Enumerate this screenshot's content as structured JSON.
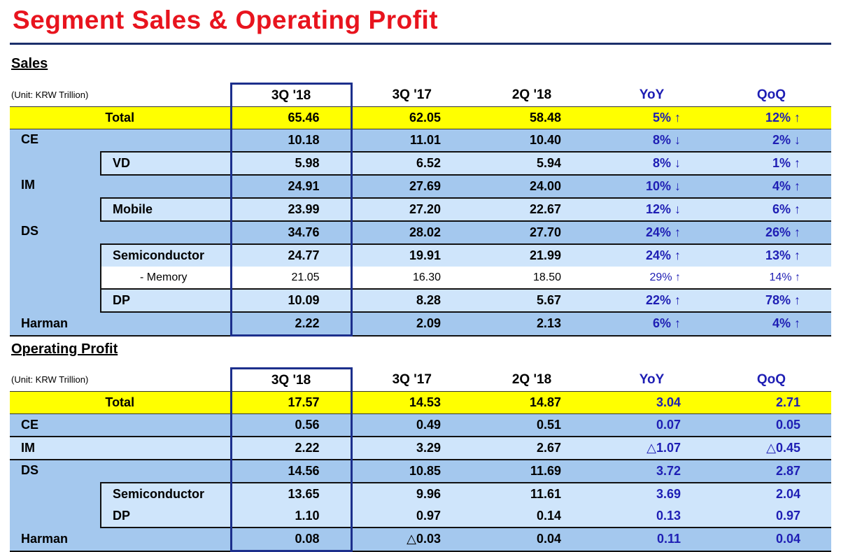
{
  "title": "Segment Sales & Operating Profit",
  "sales": {
    "heading": "Sales",
    "unit": "(Unit: KRW Trillion)",
    "columns": [
      "3Q '18",
      "3Q '17",
      "2Q '18",
      "YoY",
      "QoQ"
    ],
    "rows": {
      "total": {
        "label": "Total",
        "v": [
          "65.46",
          "62.05",
          "58.48",
          "5% ↑",
          "12% ↑"
        ]
      },
      "ce": {
        "label": "CE",
        "v": [
          "10.18",
          "11.01",
          "10.40",
          "8% ↓",
          "2% ↓"
        ]
      },
      "vd": {
        "label": "VD",
        "v": [
          "5.98",
          "6.52",
          "5.94",
          "8% ↓",
          "1% ↑"
        ]
      },
      "im": {
        "label": "IM",
        "v": [
          "24.91",
          "27.69",
          "24.00",
          "10% ↓",
          "4% ↑"
        ]
      },
      "mobile": {
        "label": "Mobile",
        "v": [
          "23.99",
          "27.20",
          "22.67",
          "12% ↓",
          "6% ↑"
        ]
      },
      "ds": {
        "label": "DS",
        "v": [
          "34.76",
          "28.02",
          "27.70",
          "24% ↑",
          "26% ↑"
        ]
      },
      "semi": {
        "label": "Semiconductor",
        "v": [
          "24.77",
          "19.91",
          "21.99",
          "24% ↑",
          "13% ↑"
        ]
      },
      "memory": {
        "label": "- Memory",
        "v": [
          "21.05",
          "16.30",
          "18.50",
          "29% ↑",
          "14% ↑"
        ]
      },
      "dp": {
        "label": "DP",
        "v": [
          "10.09",
          "8.28",
          "5.67",
          "22% ↑",
          "78% ↑"
        ]
      },
      "harman": {
        "label": "Harman",
        "v": [
          "2.22",
          "2.09",
          "2.13",
          "6% ↑",
          "4% ↑"
        ]
      }
    }
  },
  "op": {
    "heading": "Operating Profit",
    "unit": "(Unit: KRW Trillion)",
    "columns": [
      "3Q '18",
      "3Q '17",
      "2Q '18",
      "YoY",
      "QoQ"
    ],
    "rows": {
      "total": {
        "label": "Total",
        "v": [
          "17.57",
          "14.53",
          "14.87",
          "3.04",
          "2.71"
        ]
      },
      "ce": {
        "label": "CE",
        "v": [
          "0.56",
          "0.49",
          "0.51",
          "0.07",
          "0.05"
        ]
      },
      "im": {
        "label": "IM",
        "v": [
          "2.22",
          "3.29",
          "2.67",
          "△1.07",
          "△0.45"
        ]
      },
      "ds": {
        "label": "DS",
        "v": [
          "14.56",
          "10.85",
          "11.69",
          "3.72",
          "2.87"
        ]
      },
      "semi": {
        "label": "Semiconductor",
        "v": [
          "13.65",
          "9.96",
          "11.61",
          "3.69",
          "2.04"
        ]
      },
      "dp": {
        "label": "DP",
        "v": [
          "1.10",
          "0.97",
          "0.14",
          "0.13",
          "0.97"
        ]
      },
      "harman": {
        "label": "Harman",
        "v": [
          "0.08",
          "△0.03",
          "0.04",
          "0.11",
          "0.04"
        ]
      }
    }
  }
}
